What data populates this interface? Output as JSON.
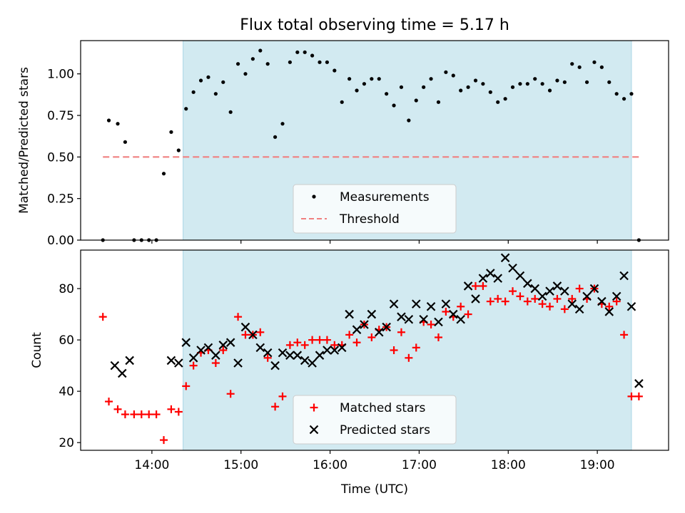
{
  "title": "Flux total observing time = 5.17 h",
  "chart_data": [
    {
      "type": "scatter",
      "ylabel": "Matched/Predicted stars",
      "ylim": [
        0,
        1.2
      ],
      "yticks": [
        0.0,
        0.25,
        0.5,
        0.75,
        1.0
      ],
      "ytick_labels": [
        "0.00",
        "0.25",
        "0.50",
        "0.75",
        "1.00"
      ],
      "shaded_region": {
        "start": "14:21",
        "end": "19:23"
      },
      "legend_placement": "lower-center",
      "colors": {
        "measurements": "#000000",
        "threshold": "#f08080",
        "shade": "#add8e6"
      },
      "series": [
        {
          "name": "Measurements",
          "marker": "dot",
          "points": [
            {
              "x": "13:27",
              "y": 0.0
            },
            {
              "x": "13:31",
              "y": 0.72
            },
            {
              "x": "13:37",
              "y": 0.7
            },
            {
              "x": "13:42",
              "y": 0.59
            },
            {
              "x": "13:48",
              "y": 0.0
            },
            {
              "x": "13:53",
              "y": 0.0
            },
            {
              "x": "13:58",
              "y": 0.0
            },
            {
              "x": "14:03",
              "y": 0.0
            },
            {
              "x": "14:08",
              "y": 0.4
            },
            {
              "x": "14:13",
              "y": 0.65
            },
            {
              "x": "14:18",
              "y": 0.54
            },
            {
              "x": "14:23",
              "y": 0.79
            },
            {
              "x": "14:28",
              "y": 0.89
            },
            {
              "x": "14:33",
              "y": 0.96
            },
            {
              "x": "14:38",
              "y": 0.98
            },
            {
              "x": "14:43",
              "y": 0.88
            },
            {
              "x": "14:48",
              "y": 0.95
            },
            {
              "x": "14:53",
              "y": 0.77
            },
            {
              "x": "14:58",
              "y": 1.06
            },
            {
              "x": "15:03",
              "y": 1.0
            },
            {
              "x": "15:08",
              "y": 1.09
            },
            {
              "x": "15:13",
              "y": 1.14
            },
            {
              "x": "15:18",
              "y": 1.06
            },
            {
              "x": "15:23",
              "y": 0.62
            },
            {
              "x": "15:28",
              "y": 0.7
            },
            {
              "x": "15:33",
              "y": 1.07
            },
            {
              "x": "15:38",
              "y": 1.13
            },
            {
              "x": "15:43",
              "y": 1.13
            },
            {
              "x": "15:48",
              "y": 1.11
            },
            {
              "x": "15:53",
              "y": 1.07
            },
            {
              "x": "15:58",
              "y": 1.07
            },
            {
              "x": "16:03",
              "y": 1.02
            },
            {
              "x": "16:08",
              "y": 0.83
            },
            {
              "x": "16:13",
              "y": 0.97
            },
            {
              "x": "16:18",
              "y": 0.9
            },
            {
              "x": "16:23",
              "y": 0.94
            },
            {
              "x": "16:28",
              "y": 0.97
            },
            {
              "x": "16:33",
              "y": 0.97
            },
            {
              "x": "16:38",
              "y": 0.88
            },
            {
              "x": "16:43",
              "y": 0.81
            },
            {
              "x": "16:48",
              "y": 0.92
            },
            {
              "x": "16:53",
              "y": 0.72
            },
            {
              "x": "16:58",
              "y": 0.84
            },
            {
              "x": "17:03",
              "y": 0.92
            },
            {
              "x": "17:08",
              "y": 0.97
            },
            {
              "x": "17:13",
              "y": 0.83
            },
            {
              "x": "17:18",
              "y": 1.01
            },
            {
              "x": "17:23",
              "y": 0.99
            },
            {
              "x": "17:28",
              "y": 0.9
            },
            {
              "x": "17:33",
              "y": 0.92
            },
            {
              "x": "17:38",
              "y": 0.96
            },
            {
              "x": "17:43",
              "y": 0.94
            },
            {
              "x": "17:48",
              "y": 0.89
            },
            {
              "x": "17:53",
              "y": 0.83
            },
            {
              "x": "17:58",
              "y": 0.85
            },
            {
              "x": "18:03",
              "y": 0.92
            },
            {
              "x": "18:08",
              "y": 0.94
            },
            {
              "x": "18:13",
              "y": 0.94
            },
            {
              "x": "18:18",
              "y": 0.97
            },
            {
              "x": "18:23",
              "y": 0.94
            },
            {
              "x": "18:28",
              "y": 0.9
            },
            {
              "x": "18:33",
              "y": 0.96
            },
            {
              "x": "18:38",
              "y": 0.95
            },
            {
              "x": "18:43",
              "y": 1.06
            },
            {
              "x": "18:48",
              "y": 1.04
            },
            {
              "x": "18:53",
              "y": 0.95
            },
            {
              "x": "18:58",
              "y": 1.07
            },
            {
              "x": "19:03",
              "y": 1.04
            },
            {
              "x": "19:08",
              "y": 0.95
            },
            {
              "x": "19:13",
              "y": 0.88
            },
            {
              "x": "19:18",
              "y": 0.85
            },
            {
              "x": "19:23",
              "y": 0.88
            },
            {
              "x": "19:28",
              "y": 0.0
            }
          ]
        },
        {
          "name": "Threshold",
          "marker": "dashed-line",
          "points": [
            {
              "x": "13:27",
              "y": 0.5
            },
            {
              "x": "19:28",
              "y": 0.5
            }
          ]
        }
      ]
    },
    {
      "type": "scatter",
      "xlabel": "Time (UTC)",
      "ylabel": "Count",
      "ylim": [
        17,
        95
      ],
      "yticks": [
        20,
        40,
        60,
        80
      ],
      "xlim": [
        "13:12",
        "19:48"
      ],
      "xticks": [
        "14:00",
        "15:00",
        "16:00",
        "17:00",
        "18:00",
        "19:00"
      ],
      "shaded_region": {
        "start": "14:21",
        "end": "19:23"
      },
      "legend_placement": "lower-center",
      "colors": {
        "matched": "#ff0000",
        "predicted": "#000000",
        "shade": "#add8e6"
      },
      "series": [
        {
          "name": "Matched stars",
          "marker": "plus",
          "points": [
            {
              "x": "13:27",
              "y": 69
            },
            {
              "x": "13:31",
              "y": 36
            },
            {
              "x": "13:37",
              "y": 33
            },
            {
              "x": "13:42",
              "y": 31
            },
            {
              "x": "13:48",
              "y": 31
            },
            {
              "x": "13:53",
              "y": 31
            },
            {
              "x": "13:58",
              "y": 31
            },
            {
              "x": "14:03",
              "y": 31
            },
            {
              "x": "14:08",
              "y": 21
            },
            {
              "x": "14:13",
              "y": 33
            },
            {
              "x": "14:18",
              "y": 32
            },
            {
              "x": "14:23",
              "y": 42
            },
            {
              "x": "14:28",
              "y": 50
            },
            {
              "x": "14:33",
              "y": 55
            },
            {
              "x": "14:38",
              "y": 56
            },
            {
              "x": "14:43",
              "y": 51
            },
            {
              "x": "14:48",
              "y": 56
            },
            {
              "x": "14:53",
              "y": 39
            },
            {
              "x": "14:58",
              "y": 69
            },
            {
              "x": "15:03",
              "y": 62
            },
            {
              "x": "15:08",
              "y": 62
            },
            {
              "x": "15:13",
              "y": 63
            },
            {
              "x": "15:18",
              "y": 53
            },
            {
              "x": "15:23",
              "y": 34
            },
            {
              "x": "15:28",
              "y": 38
            },
            {
              "x": "15:33",
              "y": 58
            },
            {
              "x": "15:38",
              "y": 59
            },
            {
              "x": "15:43",
              "y": 58
            },
            {
              "x": "15:48",
              "y": 60
            },
            {
              "x": "15:53",
              "y": 60
            },
            {
              "x": "15:58",
              "y": 60
            },
            {
              "x": "16:03",
              "y": 58
            },
            {
              "x": "16:08",
              "y": 58
            },
            {
              "x": "16:13",
              "y": 62
            },
            {
              "x": "16:18",
              "y": 59
            },
            {
              "x": "16:23",
              "y": 66
            },
            {
              "x": "16:28",
              "y": 61
            },
            {
              "x": "16:33",
              "y": 64
            },
            {
              "x": "16:38",
              "y": 65
            },
            {
              "x": "16:43",
              "y": 56
            },
            {
              "x": "16:48",
              "y": 63
            },
            {
              "x": "16:53",
              "y": 53
            },
            {
              "x": "16:58",
              "y": 57
            },
            {
              "x": "17:03",
              "y": 67
            },
            {
              "x": "17:08",
              "y": 66
            },
            {
              "x": "17:13",
              "y": 61
            },
            {
              "x": "17:18",
              "y": 71
            },
            {
              "x": "17:23",
              "y": 69
            },
            {
              "x": "17:28",
              "y": 73
            },
            {
              "x": "17:33",
              "y": 70
            },
            {
              "x": "17:38",
              "y": 81
            },
            {
              "x": "17:43",
              "y": 81
            },
            {
              "x": "17:48",
              "y": 75
            },
            {
              "x": "17:53",
              "y": 76
            },
            {
              "x": "17:58",
              "y": 75
            },
            {
              "x": "18:03",
              "y": 79
            },
            {
              "x": "18:08",
              "y": 77
            },
            {
              "x": "18:13",
              "y": 75
            },
            {
              "x": "18:18",
              "y": 76
            },
            {
              "x": "18:23",
              "y": 74
            },
            {
              "x": "18:28",
              "y": 73
            },
            {
              "x": "18:33",
              "y": 76
            },
            {
              "x": "18:38",
              "y": 72
            },
            {
              "x": "18:43",
              "y": 76
            },
            {
              "x": "18:48",
              "y": 80
            },
            {
              "x": "18:53",
              "y": 76
            },
            {
              "x": "18:58",
              "y": 80
            },
            {
              "x": "19:03",
              "y": 74
            },
            {
              "x": "19:08",
              "y": 73
            },
            {
              "x": "19:13",
              "y": 75
            },
            {
              "x": "19:18",
              "y": 62
            },
            {
              "x": "19:23",
              "y": 38
            },
            {
              "x": "19:28",
              "y": 38
            }
          ]
        },
        {
          "name": "Predicted stars",
          "marker": "cross",
          "points": [
            {
              "x": "13:35",
              "y": 50
            },
            {
              "x": "13:40",
              "y": 47
            },
            {
              "x": "13:45",
              "y": 52
            },
            {
              "x": "14:13",
              "y": 52
            },
            {
              "x": "14:18",
              "y": 51
            },
            {
              "x": "14:23",
              "y": 59
            },
            {
              "x": "14:28",
              "y": 53
            },
            {
              "x": "14:33",
              "y": 56
            },
            {
              "x": "14:38",
              "y": 57
            },
            {
              "x": "14:43",
              "y": 54
            },
            {
              "x": "14:48",
              "y": 58
            },
            {
              "x": "14:53",
              "y": 59
            },
            {
              "x": "14:58",
              "y": 51
            },
            {
              "x": "15:03",
              "y": 65
            },
            {
              "x": "15:08",
              "y": 62
            },
            {
              "x": "15:13",
              "y": 57
            },
            {
              "x": "15:18",
              "y": 55
            },
            {
              "x": "15:23",
              "y": 50
            },
            {
              "x": "15:28",
              "y": 55
            },
            {
              "x": "15:33",
              "y": 54
            },
            {
              "x": "15:38",
              "y": 54
            },
            {
              "x": "15:43",
              "y": 52
            },
            {
              "x": "15:48",
              "y": 51
            },
            {
              "x": "15:53",
              "y": 54
            },
            {
              "x": "15:58",
              "y": 56
            },
            {
              "x": "16:03",
              "y": 56
            },
            {
              "x": "16:08",
              "y": 57
            },
            {
              "x": "16:13",
              "y": 70
            },
            {
              "x": "16:18",
              "y": 64
            },
            {
              "x": "16:23",
              "y": 66
            },
            {
              "x": "16:28",
              "y": 70
            },
            {
              "x": "16:33",
              "y": 63
            },
            {
              "x": "16:38",
              "y": 65
            },
            {
              "x": "16:43",
              "y": 74
            },
            {
              "x": "16:48",
              "y": 69
            },
            {
              "x": "16:53",
              "y": 68
            },
            {
              "x": "16:58",
              "y": 74
            },
            {
              "x": "17:03",
              "y": 68
            },
            {
              "x": "17:08",
              "y": 73
            },
            {
              "x": "17:13",
              "y": 67
            },
            {
              "x": "17:18",
              "y": 74
            },
            {
              "x": "17:23",
              "y": 70
            },
            {
              "x": "17:28",
              "y": 68
            },
            {
              "x": "17:33",
              "y": 81
            },
            {
              "x": "17:38",
              "y": 76
            },
            {
              "x": "17:43",
              "y": 84
            },
            {
              "x": "17:48",
              "y": 86
            },
            {
              "x": "17:53",
              "y": 84
            },
            {
              "x": "17:58",
              "y": 92
            },
            {
              "x": "18:03",
              "y": 88
            },
            {
              "x": "18:08",
              "y": 85
            },
            {
              "x": "18:13",
              "y": 82
            },
            {
              "x": "18:18",
              "y": 80
            },
            {
              "x": "18:23",
              "y": 77
            },
            {
              "x": "18:28",
              "y": 79
            },
            {
              "x": "18:33",
              "y": 81
            },
            {
              "x": "18:38",
              "y": 79
            },
            {
              "x": "18:43",
              "y": 74
            },
            {
              "x": "18:48",
              "y": 72
            },
            {
              "x": "18:53",
              "y": 77
            },
            {
              "x": "18:58",
              "y": 80
            },
            {
              "x": "19:03",
              "y": 75
            },
            {
              "x": "19:08",
              "y": 71
            },
            {
              "x": "19:13",
              "y": 77
            },
            {
              "x": "19:18",
              "y": 85
            },
            {
              "x": "19:23",
              "y": 73
            },
            {
              "x": "19:28",
              "y": 43
            }
          ]
        }
      ]
    }
  ]
}
